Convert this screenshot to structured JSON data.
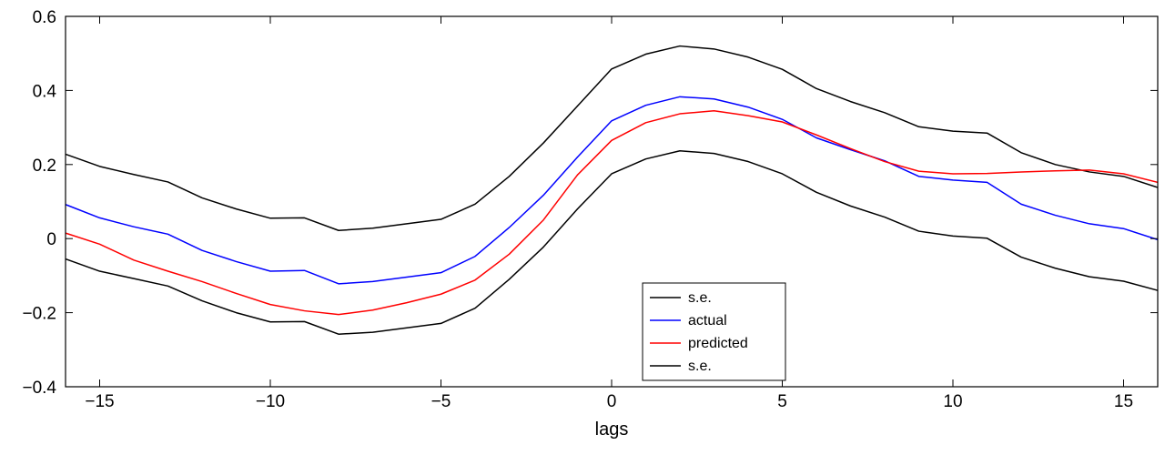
{
  "chart_data": {
    "type": "line",
    "title": "",
    "xlabel": "lags",
    "ylabel": "",
    "xlim": [
      -16,
      16
    ],
    "ylim": [
      -0.4,
      0.6
    ],
    "xticks": [
      -15,
      -10,
      -5,
      0,
      5,
      10,
      15
    ],
    "xtick_labels": [
      "−15",
      "−10",
      "−5",
      "0",
      "5",
      "10",
      "15"
    ],
    "yticks": [
      -0.4,
      -0.2,
      0,
      0.2,
      0.4,
      0.6
    ],
    "ytick_labels": [
      "−0.4",
      "−0.2",
      "0",
      "0.2",
      "0.4",
      "0.6"
    ],
    "grid": false,
    "legend_position": "bottom-center",
    "x": [
      -16,
      -15,
      -14,
      -13,
      -12,
      -11,
      -10,
      -9,
      -8,
      -7,
      -6,
      -5,
      -4,
      -3,
      -2,
      -1,
      0,
      1,
      2,
      3,
      4,
      5,
      6,
      7,
      8,
      9,
      10,
      11,
      12,
      13,
      14,
      15,
      16
    ],
    "series": [
      {
        "name": "s.e.",
        "color": "#000000",
        "values": [
          0.228,
          0.195,
          0.173,
          0.153,
          0.11,
          0.08,
          0.055,
          0.056,
          0.022,
          0.028,
          0.04,
          0.052,
          0.093,
          0.168,
          0.258,
          0.358,
          0.458,
          0.498,
          0.52,
          0.512,
          0.49,
          0.457,
          0.405,
          0.37,
          0.34,
          0.302,
          0.29,
          0.285,
          0.232,
          0.2,
          0.18,
          0.168,
          0.138
        ]
      },
      {
        "name": "actual",
        "color": "#0000ff",
        "values": [
          0.092,
          0.056,
          0.032,
          0.012,
          -0.032,
          -0.062,
          -0.088,
          -0.086,
          -0.122,
          -0.116,
          -0.104,
          -0.092,
          -0.048,
          0.03,
          0.117,
          0.22,
          0.318,
          0.36,
          0.383,
          0.377,
          0.355,
          0.322,
          0.272,
          0.24,
          0.21,
          0.168,
          0.158,
          0.152,
          0.093,
          0.063,
          0.04,
          0.027,
          -0.003
        ]
      },
      {
        "name": "predicted",
        "color": "#ff0000",
        "values": [
          0.015,
          -0.015,
          -0.058,
          -0.088,
          -0.116,
          -0.148,
          -0.178,
          -0.195,
          -0.205,
          -0.193,
          -0.173,
          -0.15,
          -0.112,
          -0.042,
          0.05,
          0.172,
          0.265,
          0.313,
          0.337,
          0.345,
          0.332,
          0.315,
          0.28,
          0.243,
          0.208,
          0.182,
          0.175,
          0.176,
          0.18,
          0.183,
          0.185,
          0.175,
          0.152
        ]
      },
      {
        "name": "s.e.",
        "color": "#000000",
        "values": [
          -0.055,
          -0.088,
          -0.108,
          -0.128,
          -0.168,
          -0.2,
          -0.225,
          -0.224,
          -0.258,
          -0.253,
          -0.241,
          -0.229,
          -0.188,
          -0.11,
          -0.023,
          0.08,
          0.175,
          0.215,
          0.237,
          0.23,
          0.208,
          0.175,
          0.125,
          0.088,
          0.058,
          0.02,
          0.007,
          0.001,
          -0.05,
          -0.08,
          -0.103,
          -0.115,
          -0.14
        ]
      }
    ]
  }
}
